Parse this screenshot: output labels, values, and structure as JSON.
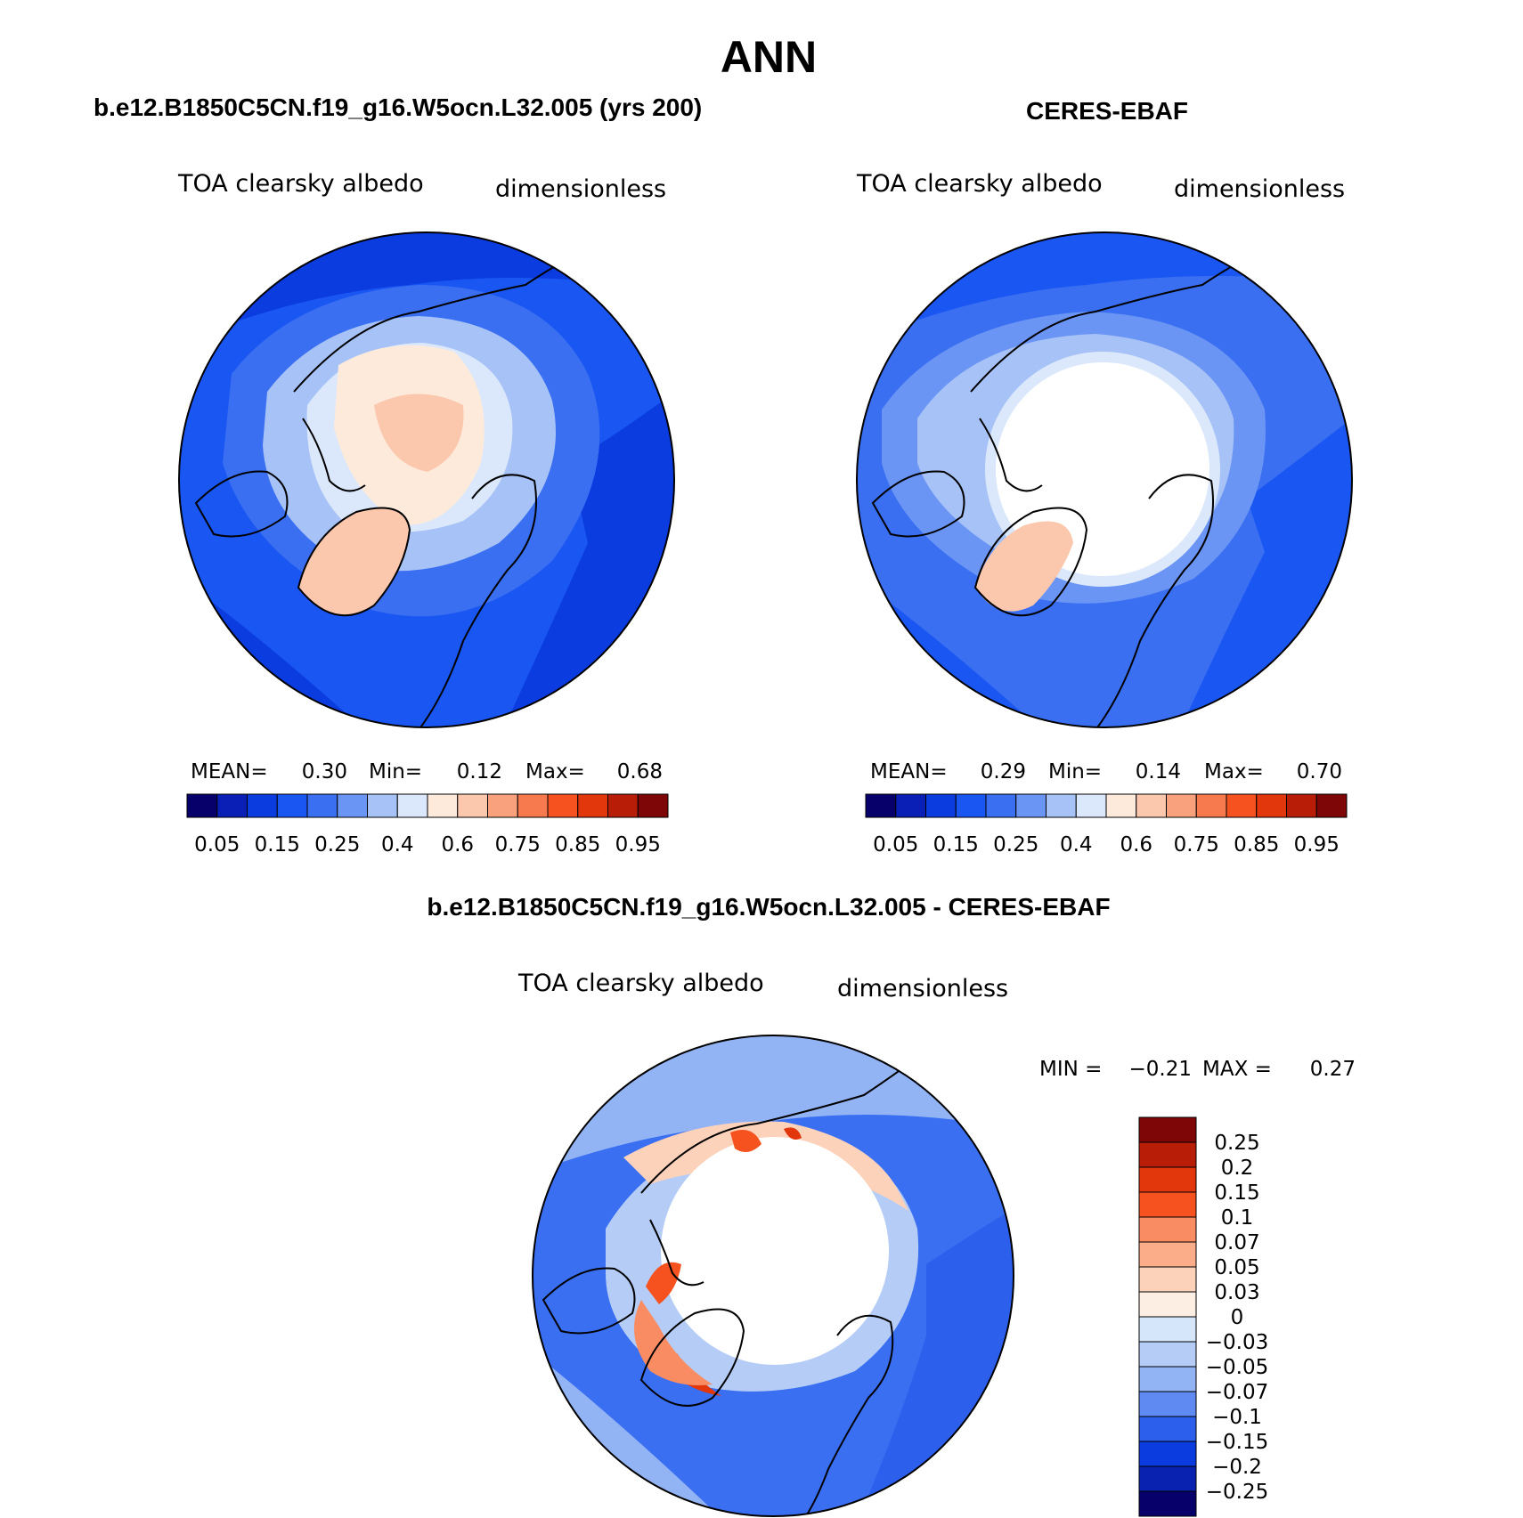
{
  "figure": {
    "season": "ANN",
    "panels": [
      {
        "id": "model",
        "title": "b.e12.B1850C5CN.f19_g16.W5ocn.L32.005 (yrs 200)",
        "variable": "TOA clearsky albedo",
        "units": "dimensionless",
        "stats": {
          "mean_label": "MEAN=",
          "mean": "0.30",
          "min_label": "Min=",
          "min": "0.12",
          "max_label": "Max=",
          "max": "0.68"
        }
      },
      {
        "id": "obs",
        "title": "CERES-EBAF",
        "variable": "TOA clearsky albedo",
        "units": "dimensionless",
        "stats": {
          "mean_label": "MEAN=",
          "mean": "0.29",
          "min_label": "Min=",
          "min": "0.14",
          "max_label": "Max=",
          "max": "0.70"
        }
      },
      {
        "id": "diff",
        "title": "b.e12.B1850C5CN.f19_g16.W5ocn.L32.005 - CERES-EBAF",
        "variable": "TOA clearsky albedo",
        "units": "dimensionless",
        "stats": {
          "min_label": "MIN =",
          "min": "−0.21",
          "max_label": "MAX =",
          "max": "0.27"
        }
      }
    ]
  },
  "chart_data": [
    {
      "type": "heatmap",
      "projection": "north polar stereographic",
      "title": "b.e12.B1850C5CN.f19_g16.W5ocn.L32.005 (yrs 200)",
      "variable": "TOA clearsky albedo",
      "units": "dimensionless",
      "mean": 0.3,
      "min": 0.12,
      "max": 0.68,
      "colorbar": {
        "orientation": "horizontal",
        "levels": [
          0.05,
          0.1,
          0.15,
          0.2,
          0.25,
          0.3,
          0.4,
          0.5,
          0.6,
          0.7,
          0.75,
          0.8,
          0.85,
          0.9,
          0.95
        ],
        "tick_labels": [
          "0.05",
          "0.15",
          "0.25",
          "0.4",
          "0.6",
          "0.75",
          "0.85",
          "0.95"
        ],
        "colors": [
          "#08006a",
          "#0a1fb5",
          "#0b3ce0",
          "#1a56f2",
          "#3a6ff2",
          "#6b95f4",
          "#a6c2f6",
          "#dbe8fb",
          "#fdeadb",
          "#fbc7ad",
          "#f9a07d",
          "#f77a4e",
          "#f5521f",
          "#e2360c",
          "#b81d08",
          "#7e0606"
        ]
      }
    },
    {
      "type": "heatmap",
      "projection": "north polar stereographic",
      "title": "CERES-EBAF",
      "variable": "TOA clearsky albedo",
      "units": "dimensionless",
      "mean": 0.29,
      "min": 0.14,
      "max": 0.7,
      "colorbar": {
        "orientation": "horizontal",
        "levels": [
          0.05,
          0.1,
          0.15,
          0.2,
          0.25,
          0.3,
          0.4,
          0.5,
          0.6,
          0.7,
          0.75,
          0.8,
          0.85,
          0.9,
          0.95
        ],
        "tick_labels": [
          "0.05",
          "0.15",
          "0.25",
          "0.4",
          "0.6",
          "0.75",
          "0.85",
          "0.95"
        ],
        "colors": [
          "#08006a",
          "#0a1fb5",
          "#0b3ce0",
          "#1a56f2",
          "#3a6ff2",
          "#6b95f4",
          "#a6c2f6",
          "#dbe8fb",
          "#fdeadb",
          "#fbc7ad",
          "#f9a07d",
          "#f77a4e",
          "#f5521f",
          "#e2360c",
          "#b81d08",
          "#7e0606"
        ]
      }
    },
    {
      "type": "heatmap",
      "projection": "north polar stereographic",
      "title": "b.e12.B1850C5CN.f19_g16.W5ocn.L32.005 - CERES-EBAF",
      "variable": "TOA clearsky albedo",
      "units": "dimensionless",
      "min": -0.21,
      "max": 0.27,
      "colorbar": {
        "orientation": "vertical",
        "tick_labels": [
          "0.25",
          "0.2",
          "0.15",
          "0.1",
          "0.07",
          "0.05",
          "0.03",
          "0",
          "−0.03",
          "−0.05",
          "−0.07",
          "−0.1",
          "−0.15",
          "−0.2",
          "−0.25"
        ],
        "colors_top_to_bottom": [
          "#7e0606",
          "#b81d08",
          "#e2360c",
          "#f5521f",
          "#f98c63",
          "#fbad8a",
          "#fcd2bb",
          "#fdeee3",
          "#d6e6fa",
          "#b5cdf6",
          "#93b4f4",
          "#5e8af2",
          "#2c60ec",
          "#0b3ce0",
          "#0a22b0",
          "#08006a"
        ]
      }
    }
  ]
}
